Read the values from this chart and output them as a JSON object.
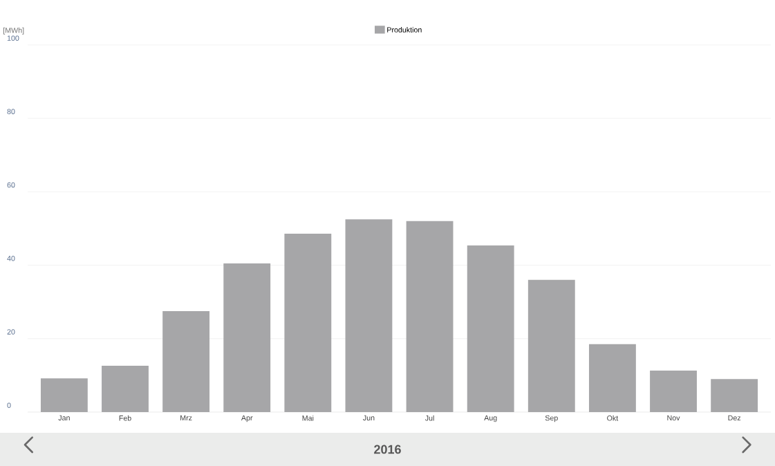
{
  "chart_data": {
    "type": "bar",
    "ylabel": "[MWh]",
    "categories": [
      "Jan",
      "Feb",
      "Mrz",
      "Apr",
      "Mai",
      "Jun",
      "Jul",
      "Aug",
      "Sep",
      "Okt",
      "Nov",
      "Dez"
    ],
    "series": [
      {
        "name": "Produktion",
        "color": "#a6a6a8",
        "values": [
          9.2,
          12.6,
          27.5,
          40.5,
          48.6,
          52.5,
          52.0,
          45.4,
          36.0,
          18.5,
          11.3,
          9.0
        ]
      }
    ],
    "ylim": [
      0,
      100
    ],
    "yticks": [
      0,
      20,
      40,
      60,
      80,
      100
    ],
    "grid": "y",
    "legend": "top",
    "annotations": [
      "2016"
    ]
  }
}
